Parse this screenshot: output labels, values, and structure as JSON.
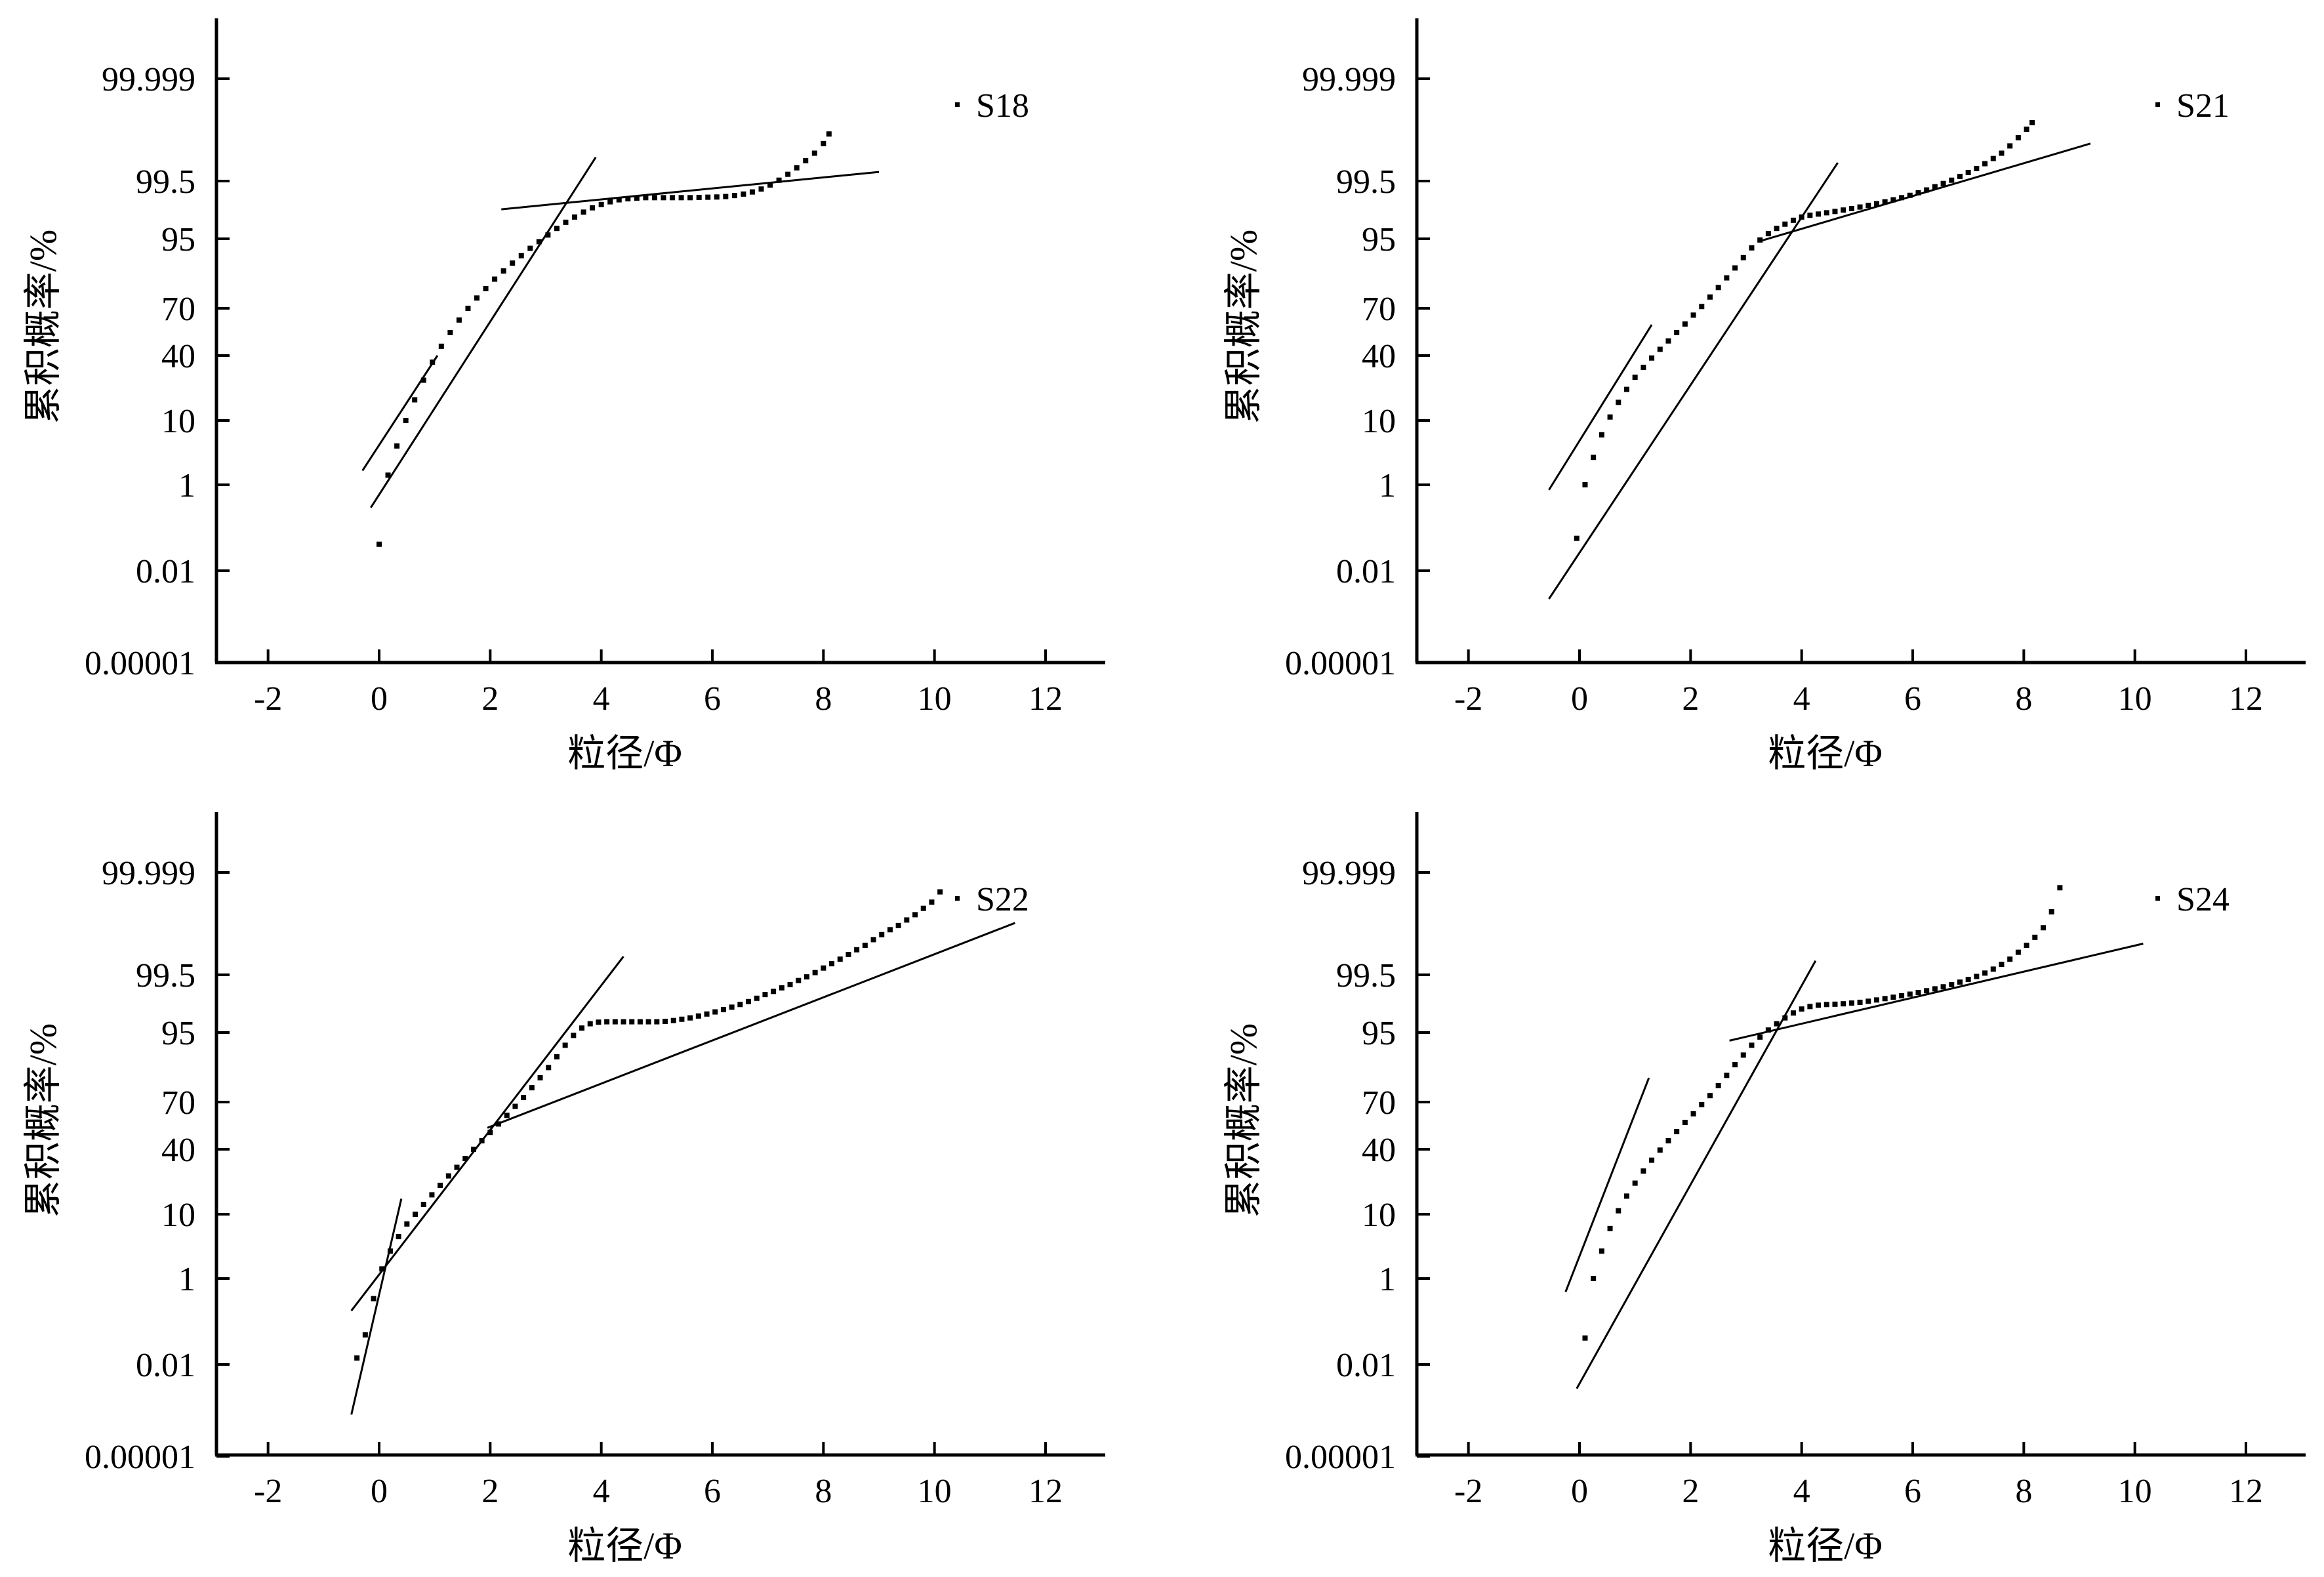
{
  "figure": {
    "ylabel": "累积概率/%",
    "xlabel": "粒径/Φ",
    "y_tick_labels": [
      "99.999",
      "99.5",
      "95",
      "70",
      "40",
      "10",
      "1",
      "0.01",
      "0.00001"
    ],
    "x_tick_labels": [
      "-2",
      "0",
      "2",
      "4",
      "6",
      "8",
      "10",
      "12"
    ]
  },
  "chart_data": [
    {
      "type": "scatter",
      "title": "",
      "legend": "S18",
      "legend_position": "top-right",
      "xlabel": "粒径/Φ",
      "ylabel": "累积概率/%",
      "xlim": [
        -3,
        13
      ],
      "ylim_probability_percent": [
        1e-05,
        99.999
      ],
      "y_scale": "probability",
      "grid": false,
      "series": [
        {
          "x": [
            0.0,
            0.16,
            0.32,
            0.48,
            0.64,
            0.8,
            0.96,
            1.12,
            1.28,
            1.44,
            1.6,
            1.76,
            1.92,
            2.08,
            2.24,
            2.4,
            2.56,
            2.72,
            2.88,
            3.04,
            3.2,
            3.36,
            3.52,
            3.68,
            3.84,
            4.0,
            4.16,
            4.32,
            4.48,
            4.64,
            4.8,
            4.96,
            5.12,
            5.28,
            5.44,
            5.6,
            5.76,
            5.92,
            6.08,
            6.24,
            6.4,
            6.56,
            6.72,
            6.88,
            7.04,
            7.2,
            7.36,
            7.52,
            7.68,
            7.84,
            8.0,
            8.1
          ],
          "y": [
            0.05,
            1.5,
            4.5,
            10.0,
            17.0,
            26.0,
            36.0,
            46.0,
            55.0,
            63.0,
            70.0,
            75.5,
            80.0,
            84.0,
            87.0,
            89.5,
            91.5,
            93.2,
            94.5,
            95.6,
            96.5,
            97.2,
            97.7,
            98.1,
            98.4,
            98.6,
            98.75,
            98.85,
            98.9,
            98.93,
            98.95,
            98.95,
            98.95,
            98.95,
            98.95,
            98.95,
            98.96,
            98.97,
            98.98,
            99.0,
            99.04,
            99.1,
            99.18,
            99.28,
            99.4,
            99.52,
            99.64,
            99.74,
            99.82,
            99.88,
            99.93,
            99.96
          ]
        }
      ],
      "fit_lines": [
        {
          "x": [
            -0.3,
            1.05
          ],
          "y": [
            1.8,
            40.0
          ]
        },
        {
          "x": [
            -0.15,
            3.9
          ],
          "y": [
            0.35,
            99.85
          ]
        },
        {
          "x": [
            2.2,
            9.0
          ],
          "y": [
            98.3,
            99.68
          ]
        }
      ]
    },
    {
      "type": "scatter",
      "title": "",
      "legend": "S21",
      "legend_position": "top-right",
      "xlabel": "粒径/Φ",
      "ylabel": "累积概率/%",
      "xlim": [
        -3,
        13
      ],
      "ylim_probability_percent": [
        1e-05,
        99.999
      ],
      "y_scale": "probability",
      "grid": false,
      "series": [
        {
          "x": [
            -0.05,
            0.1,
            0.25,
            0.4,
            0.55,
            0.7,
            0.85,
            1.0,
            1.15,
            1.3,
            1.45,
            1.6,
            1.75,
            1.9,
            2.05,
            2.2,
            2.35,
            2.5,
            2.65,
            2.8,
            2.95,
            3.1,
            3.25,
            3.4,
            3.55,
            3.7,
            3.85,
            4.0,
            4.15,
            4.3,
            4.45,
            4.6,
            4.75,
            4.9,
            5.05,
            5.2,
            5.35,
            5.5,
            5.65,
            5.8,
            5.95,
            6.1,
            6.25,
            6.4,
            6.55,
            6.7,
            6.85,
            7.0,
            7.15,
            7.3,
            7.45,
            7.6,
            7.75,
            7.9,
            8.05,
            8.15
          ],
          "y": [
            0.07,
            1.0,
            3.0,
            6.5,
            11.0,
            16.0,
            21.5,
            27.5,
            33.0,
            38.5,
            44.0,
            49.5,
            55.0,
            60.5,
            66.0,
            71.0,
            76.0,
            80.5,
            84.5,
            88.0,
            91.0,
            93.3,
            94.8,
            95.8,
            96.5,
            97.0,
            97.4,
            97.7,
            97.85,
            97.95,
            98.05,
            98.15,
            98.25,
            98.35,
            98.45,
            98.55,
            98.65,
            98.75,
            98.85,
            98.95,
            99.05,
            99.15,
            99.25,
            99.35,
            99.44,
            99.52,
            99.6,
            99.67,
            99.73,
            99.79,
            99.84,
            99.88,
            99.92,
            99.95,
            99.97,
            99.98
          ]
        }
      ],
      "fit_lines": [
        {
          "x": [
            -0.55,
            1.3
          ],
          "y": [
            0.8,
            60.0
          ]
        },
        {
          "x": [
            -0.55,
            4.65
          ],
          "y": [
            0.0015,
            99.8
          ]
        },
        {
          "x": [
            3.25,
            9.2
          ],
          "y": [
            94.6,
            99.93
          ]
        }
      ]
    },
    {
      "type": "scatter",
      "title": "",
      "legend": "S22",
      "legend_position": "top-right",
      "xlabel": "粒径/Φ",
      "ylabel": "累积概率/%",
      "xlim": [
        -3,
        13
      ],
      "ylim_probability_percent": [
        1e-05,
        99.999
      ],
      "y_scale": "probability",
      "grid": false,
      "series": [
        {
          "x": [
            -0.4,
            -0.25,
            -0.1,
            0.05,
            0.2,
            0.35,
            0.5,
            0.65,
            0.8,
            0.95,
            1.1,
            1.25,
            1.4,
            1.55,
            1.7,
            1.85,
            2.0,
            2.15,
            2.3,
            2.45,
            2.6,
            2.75,
            2.9,
            3.05,
            3.2,
            3.35,
            3.5,
            3.65,
            3.8,
            3.95,
            4.1,
            4.25,
            4.4,
            4.55,
            4.7,
            4.85,
            5.0,
            5.15,
            5.3,
            5.45,
            5.6,
            5.75,
            5.9,
            6.05,
            6.2,
            6.35,
            6.5,
            6.65,
            6.8,
            6.95,
            7.1,
            7.25,
            7.4,
            7.55,
            7.7,
            7.85,
            8.0,
            8.15,
            8.3,
            8.45,
            8.6,
            8.75,
            8.9,
            9.05,
            9.2,
            9.35,
            9.5,
            9.65,
            9.8,
            9.95,
            10.1
          ],
          "y": [
            0.015,
            0.06,
            0.4,
            1.5,
            3.0,
            5.0,
            7.5,
            10.0,
            13.0,
            16.5,
            20.5,
            25.0,
            29.5,
            34.5,
            40.0,
            45.5,
            51.0,
            56.5,
            62.0,
            67.5,
            72.5,
            77.5,
            82.0,
            86.0,
            89.5,
            92.5,
            94.5,
            95.7,
            96.3,
            96.5,
            96.55,
            96.55,
            96.55,
            96.55,
            96.55,
            96.55,
            96.55,
            96.6,
            96.7,
            96.85,
            97.0,
            97.2,
            97.4,
            97.6,
            97.8,
            98.0,
            98.2,
            98.4,
            98.6,
            98.8,
            98.95,
            99.1,
            99.22,
            99.35,
            99.45,
            99.55,
            99.64,
            99.71,
            99.77,
            99.82,
            99.86,
            99.89,
            99.92,
            99.94,
            99.955,
            99.965,
            99.975,
            99.982,
            99.988,
            99.992,
            99.996
          ]
        }
      ],
      "fit_lines": [
        {
          "x": [
            -0.5,
            0.4
          ],
          "y": [
            0.0003,
            15.0
          ]
        },
        {
          "x": [
            -0.5,
            4.4
          ],
          "y": [
            0.22,
            99.8
          ]
        },
        {
          "x": [
            1.95,
            11.45
          ],
          "y": [
            54.0,
            99.97
          ]
        }
      ]
    },
    {
      "type": "scatter",
      "title": "",
      "legend": "S24",
      "legend_position": "top-right",
      "xlabel": "粒径/Φ",
      "ylabel": "累积概率/%",
      "xlim": [
        -3,
        13
      ],
      "ylim_probability_percent": [
        1e-05,
        99.999
      ],
      "y_scale": "probability",
      "grid": false,
      "series": [
        {
          "x": [
            0.1,
            0.25,
            0.4,
            0.55,
            0.7,
            0.85,
            1.0,
            1.15,
            1.3,
            1.45,
            1.6,
            1.75,
            1.9,
            2.05,
            2.2,
            2.35,
            2.5,
            2.65,
            2.8,
            2.95,
            3.1,
            3.25,
            3.4,
            3.55,
            3.7,
            3.85,
            4.0,
            4.15,
            4.3,
            4.45,
            4.6,
            4.75,
            4.9,
            5.05,
            5.2,
            5.35,
            5.5,
            5.65,
            5.8,
            5.95,
            6.1,
            6.25,
            6.4,
            6.55,
            6.7,
            6.85,
            7.0,
            7.15,
            7.3,
            7.45,
            7.6,
            7.75,
            7.9,
            8.05,
            8.2,
            8.35,
            8.5,
            8.65
          ],
          "y": [
            0.05,
            1.0,
            3.0,
            6.5,
            11.0,
            16.0,
            21.5,
            27.5,
            33.5,
            39.5,
            45.5,
            51.5,
            57.5,
            63.0,
            68.5,
            73.5,
            78.5,
            83.0,
            87.0,
            90.0,
            92.5,
            94.2,
            95.4,
            96.3,
            97.0,
            97.5,
            97.85,
            98.05,
            98.15,
            98.2,
            98.22,
            98.25,
            98.3,
            98.35,
            98.42,
            98.5,
            98.58,
            98.66,
            98.74,
            98.82,
            98.9,
            98.98,
            99.06,
            99.14,
            99.22,
            99.3,
            99.38,
            99.46,
            99.54,
            99.62,
            99.7,
            99.77,
            99.84,
            99.89,
            99.93,
            99.96,
            99.985,
            99.997
          ]
        }
      ],
      "fit_lines": [
        {
          "x": [
            -0.25,
            1.25
          ],
          "y": [
            0.55,
            82.0
          ]
        },
        {
          "x": [
            -0.05,
            4.25
          ],
          "y": [
            0.002,
            99.75
          ]
        },
        {
          "x": [
            2.7,
            10.15
          ],
          "y": [
            93.5,
            99.9
          ]
        }
      ]
    }
  ]
}
